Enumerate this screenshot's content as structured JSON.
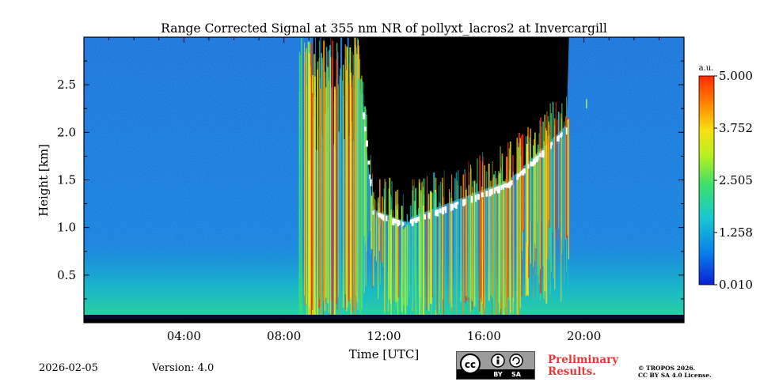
{
  "chart_data": {
    "type": "heatmap",
    "title": "Range Corrected Signal at 355 nm NR of pollyxt_lacros2 at Invercargill",
    "xlabel": "Time [UTC]",
    "ylabel": "Height [km]",
    "xlim_hours": [
      0,
      24
    ],
    "ylim_km": [
      0,
      3.0
    ],
    "xticks": [
      {
        "value": 4,
        "label": "04:00"
      },
      {
        "value": 8,
        "label": "08:00"
      },
      {
        "value": 12,
        "label": "12:00"
      },
      {
        "value": 16,
        "label": "16:00"
      },
      {
        "value": 20,
        "label": "20:00"
      }
    ],
    "yticks": [
      {
        "value": 0.5,
        "label": "0.5"
      },
      {
        "value": 1.0,
        "label": "1.0"
      },
      {
        "value": 1.5,
        "label": "1.5"
      },
      {
        "value": 2.0,
        "label": "2.0"
      },
      {
        "value": 2.5,
        "label": "2.5"
      }
    ],
    "colorbar": {
      "unit": "a.u.",
      "min": 0.01,
      "max": 5.0,
      "ticks": [
        "5.000",
        "3.752",
        "2.505",
        "1.258",
        "0.010"
      ],
      "colors": [
        "#0a1fd8",
        "#0a7de8",
        "#18c8d0",
        "#3ee06a",
        "#b8f020",
        "#f8e010",
        "#ff8a00",
        "#ff2a00"
      ]
    },
    "features": [
      {
        "name": "cloud-and-precipitation",
        "start_hour": 8.6,
        "end_hour": 19.4,
        "top_km": 3.0
      },
      {
        "name": "boundary-layer",
        "start_hour": 0,
        "end_hour": 24,
        "top_km": 0.6
      },
      {
        "name": "signal-attenuated-region",
        "start_hour": 10.8,
        "end_hour": 19.4,
        "top_km": 3.0
      }
    ]
  },
  "footer": {
    "date": "2026-02-05",
    "version": "Version: 4.0",
    "cc_badge": {
      "cc": "cc",
      "by": "BY",
      "sa": "SA"
    },
    "preliminary_line1": "Preliminary",
    "preliminary_line2": "Results.",
    "copyright_line1": "© TROPOS 2026.",
    "copyright_line2": "CC BY SA 4.0 License."
  }
}
